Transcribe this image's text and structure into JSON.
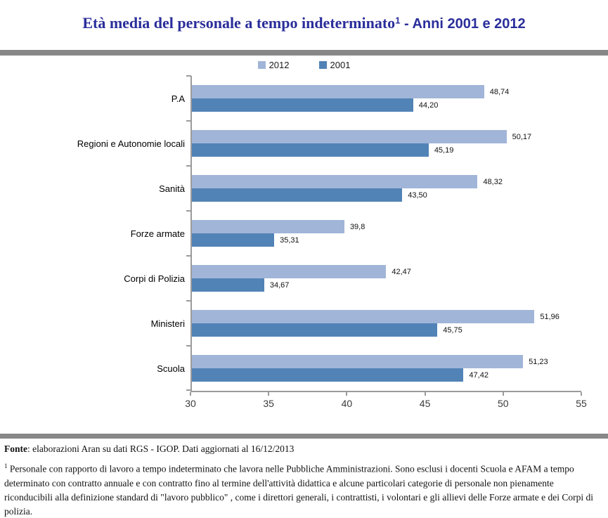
{
  "title": {
    "main": "Età media del personale a tempo indeterminato",
    "footnote_marker": "1",
    "suffix": " - Anni 2001 e 2012"
  },
  "colors": {
    "title": "#2a2e9a",
    "rule": "#878787",
    "axis": "#9b9b9b",
    "series_2012": "#a1b5d8",
    "series_2001": "#5283b6"
  },
  "legend": [
    {
      "label": "2012",
      "color": "#a1b5d8"
    },
    {
      "label": "2001",
      "color": "#5283b6"
    }
  ],
  "chart_data": {
    "type": "bar",
    "orientation": "horizontal",
    "title": "Età media del personale a tempo indeterminato - Anni 2001 e 2012",
    "categories": [
      "P.A",
      "Regioni e Autonomie locali",
      "Sanità",
      "Forze armate",
      "Corpi di Polizia",
      "Ministeri",
      "Scuola"
    ],
    "series": [
      {
        "name": "2012",
        "color": "#a1b5d8",
        "values": [
          48.74,
          50.17,
          48.32,
          39.8,
          42.47,
          51.96,
          51.23
        ],
        "labels": [
          "48,74",
          "50,17",
          "48,32",
          "39,8",
          "42,47",
          "51,96",
          "51,23"
        ]
      },
      {
        "name": "2001",
        "color": "#5283b6",
        "values": [
          44.2,
          45.19,
          43.5,
          35.31,
          34.67,
          45.75,
          47.42
        ],
        "labels": [
          "44,20",
          "45,19",
          "43,50",
          "35,31",
          "34,67",
          "45,75",
          "47,42"
        ]
      }
    ],
    "xlim": [
      30,
      55
    ],
    "x_ticks": [
      30,
      35,
      40,
      45,
      50,
      55
    ],
    "xlabel": "",
    "ylabel": "",
    "grid": false,
    "legend_position": "top"
  },
  "footer": {
    "fonte_label": "Fonte",
    "fonte_text": ": elaborazioni Aran su dati RGS - IGOP. Dati aggiornati al 16/12/2013",
    "footnote_marker": "1",
    "footnote_text": " Personale con rapporto di lavoro a tempo indeterminato che lavora nelle Pubbliche Amministrazioni. Sono esclusi i docenti Scuola e AFAM a tempo determinato con contratto annuale e con contratto fino al termine dell'attività didattica e alcune particolari categorie di personale non pienamente riconducibili alla definizione standard di \"lavoro pubblico\" , come i direttori generali, i contrattisti, i volontari e gli allievi delle Forze armate e dei Corpi di polizia."
  }
}
